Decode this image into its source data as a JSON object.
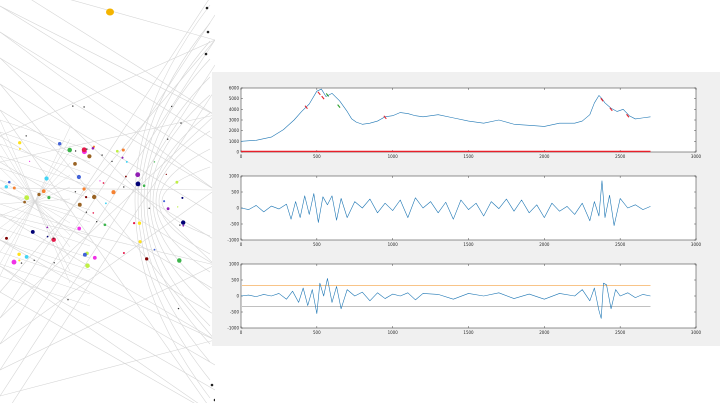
{
  "colors": {
    "line": "#1f77b4",
    "marker_red": "#e8202a",
    "marker_green": "#2ca02c",
    "threshold": "#f5a040",
    "axis": "#262626",
    "figure_bg": "#f0f0f0",
    "deco_line": "#d6d6d6"
  },
  "chart_data": [
    {
      "type": "line",
      "xlim": [
        0,
        3000
      ],
      "ylim": [
        0,
        6000
      ],
      "xticks": [
        "0",
        "500",
        "1000",
        "1500",
        "2000",
        "2500",
        "3000"
      ],
      "yticks": [
        "0",
        "1000",
        "2000",
        "3000",
        "4000",
        "5000",
        "6000"
      ],
      "x": [
        0,
        100,
        200,
        280,
        350,
        400,
        450,
        500,
        530,
        560,
        600,
        650,
        700,
        730,
        760,
        800,
        850,
        900,
        950,
        1000,
        1050,
        1100,
        1150,
        1200,
        1300,
        1400,
        1500,
        1600,
        1700,
        1800,
        1900,
        2000,
        2100,
        2200,
        2250,
        2300,
        2330,
        2360,
        2380,
        2400,
        2440,
        2480,
        2520,
        2560,
        2600,
        2650,
        2700
      ],
      "y": [
        1000,
        1100,
        1400,
        2100,
        3000,
        3800,
        4500,
        5700,
        5900,
        5200,
        5500,
        4800,
        3800,
        3100,
        2800,
        2600,
        2700,
        2900,
        3300,
        3400,
        3700,
        3600,
        3400,
        3300,
        3500,
        3200,
        2900,
        2700,
        3000,
        2600,
        2500,
        2400,
        2700,
        2700,
        2900,
        3500,
        4600,
        5300,
        5000,
        4600,
        4100,
        3800,
        4000,
        3400,
        3100,
        3200,
        3300
      ],
      "markers": [
        {
          "x": 430,
          "y": 4200,
          "color": "red"
        },
        {
          "x": 515,
          "y": 5500,
          "color": "red"
        },
        {
          "x": 540,
          "y": 5100,
          "color": "red"
        },
        {
          "x": 570,
          "y": 5350,
          "color": "green"
        },
        {
          "x": 645,
          "y": 4300,
          "color": "green"
        },
        {
          "x": 950,
          "y": 3250,
          "color": "red"
        },
        {
          "x": 2380,
          "y": 4900,
          "color": "red"
        },
        {
          "x": 2440,
          "y": 4000,
          "color": "red"
        },
        {
          "x": 2550,
          "y": 3400,
          "color": "red"
        }
      ],
      "baseline": {
        "from": 0,
        "to": 2700,
        "y": 0
      }
    },
    {
      "type": "line",
      "xlim": [
        0,
        3000
      ],
      "ylim": [
        -1000,
        1000
      ],
      "xticks": [
        "0",
        "500",
        "1000",
        "1500",
        "2000",
        "2500",
        "3000"
      ],
      "yticks": [
        "-1000",
        "-500",
        "0",
        "500",
        "1000"
      ],
      "x": [
        0,
        50,
        100,
        150,
        200,
        250,
        300,
        330,
        360,
        390,
        420,
        450,
        480,
        510,
        540,
        570,
        600,
        630,
        660,
        700,
        750,
        800,
        850,
        900,
        950,
        1000,
        1050,
        1100,
        1150,
        1200,
        1250,
        1300,
        1350,
        1400,
        1450,
        1500,
        1550,
        1600,
        1650,
        1700,
        1750,
        1800,
        1850,
        1900,
        1950,
        2000,
        2050,
        2100,
        2150,
        2200,
        2250,
        2300,
        2330,
        2360,
        2380,
        2400,
        2430,
        2460,
        2500,
        2550,
        2600,
        2650,
        2700
      ],
      "y": [
        0,
        -50,
        80,
        -120,
        60,
        -30,
        120,
        -350,
        200,
        -300,
        380,
        -200,
        450,
        -450,
        350,
        100,
        380,
        -380,
        300,
        -300,
        200,
        0,
        280,
        -150,
        150,
        -80,
        250,
        -300,
        320,
        0,
        200,
        -150,
        180,
        -350,
        250,
        -50,
        150,
        -250,
        200,
        -20,
        280,
        -100,
        250,
        -150,
        100,
        -300,
        150,
        -100,
        50,
        -200,
        150,
        -400,
        200,
        -250,
        850,
        -300,
        400,
        -550,
        300,
        0,
        100,
        -50,
        50
      ]
    },
    {
      "type": "line",
      "xlim": [
        0,
        3000
      ],
      "ylim": [
        -1000,
        1000
      ],
      "xticks": [
        "0",
        "500",
        "1000",
        "1500",
        "2000",
        "2500",
        "3000"
      ],
      "yticks": [
        "-1000",
        "-500",
        "0",
        "500",
        "1000"
      ],
      "x": [
        0,
        50,
        100,
        150,
        200,
        250,
        300,
        340,
        380,
        410,
        440,
        470,
        500,
        520,
        545,
        570,
        600,
        630,
        660,
        700,
        750,
        800,
        850,
        900,
        950,
        1000,
        1050,
        1100,
        1150,
        1200,
        1300,
        1400,
        1500,
        1600,
        1700,
        1800,
        1900,
        2000,
        2100,
        2200,
        2250,
        2300,
        2330,
        2360,
        2375,
        2390,
        2410,
        2440,
        2470,
        2500,
        2550,
        2600,
        2650,
        2700
      ],
      "y": [
        0,
        30,
        -20,
        50,
        0,
        80,
        -100,
        150,
        -200,
        250,
        -300,
        200,
        -550,
        400,
        0,
        550,
        -200,
        300,
        -400,
        200,
        0,
        120,
        -150,
        100,
        -80,
        60,
        0,
        100,
        -120,
        80,
        50,
        -100,
        80,
        0,
        100,
        -80,
        60,
        -100,
        80,
        0,
        200,
        -150,
        250,
        -450,
        -700,
        400,
        350,
        -400,
        200,
        0,
        100,
        -50,
        50,
        0
      ],
      "thresholds": [
        {
          "y": 330,
          "color": "orange"
        },
        {
          "y": -330,
          "color": "gray"
        }
      ]
    }
  ]
}
